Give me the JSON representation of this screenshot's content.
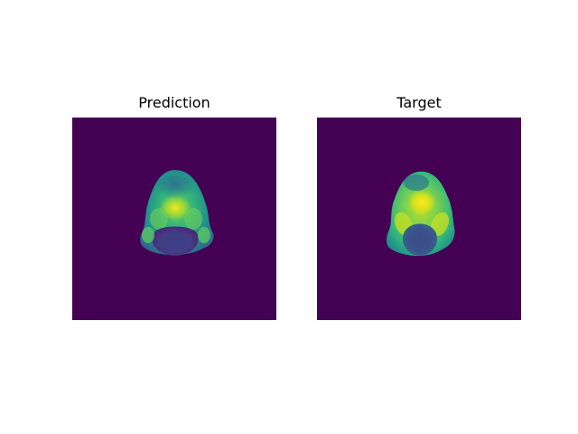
{
  "figure": {
    "panels": [
      {
        "title": "Prediction"
      },
      {
        "title": "Target"
      }
    ]
  },
  "colors": {
    "background": "#ffffff",
    "colormap": "viridis",
    "viridis_low": "#440154",
    "viridis_mid_blue": "#3b528b",
    "viridis_teal": "#21918c",
    "viridis_green": "#5ec962",
    "viridis_high": "#fde725"
  }
}
